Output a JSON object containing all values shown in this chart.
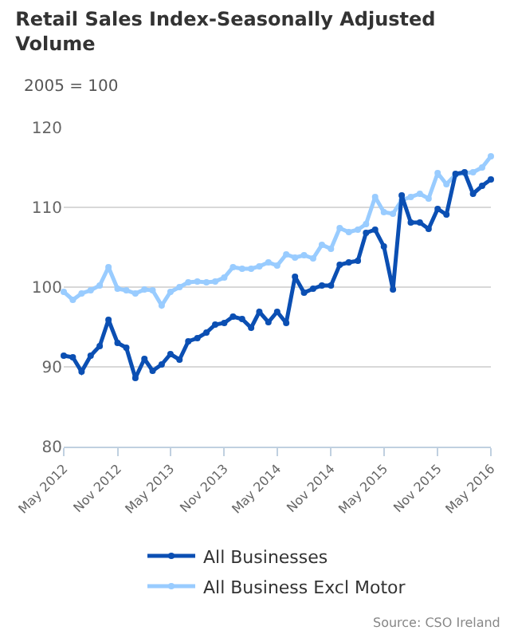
{
  "chart_data": {
    "type": "line",
    "title": "Retail Sales Index-Seasonally Adjusted Volume",
    "subtitle": "2005 = 100",
    "x": [
      "2012-05",
      "2012-06",
      "2012-07",
      "2012-08",
      "2012-09",
      "2012-10",
      "2012-11",
      "2012-12",
      "2013-01",
      "2013-02",
      "2013-03",
      "2013-04",
      "2013-05",
      "2013-06",
      "2013-07",
      "2013-08",
      "2013-09",
      "2013-10",
      "2013-11",
      "2013-12",
      "2014-01",
      "2014-02",
      "2014-03",
      "2014-04",
      "2014-05",
      "2014-06",
      "2014-07",
      "2014-08",
      "2014-09",
      "2014-10",
      "2014-11",
      "2014-12",
      "2015-01",
      "2015-02",
      "2015-03",
      "2015-04",
      "2015-05",
      "2015-06",
      "2015-07",
      "2015-08",
      "2015-09",
      "2015-10",
      "2015-11",
      "2015-12",
      "2016-01",
      "2016-02",
      "2016-03",
      "2016-04",
      "2016-05"
    ],
    "series": [
      {
        "name": "All Businesses",
        "color": "#0b4fb3",
        "values": [
          91.4,
          91.2,
          89.4,
          91.4,
          92.6,
          95.9,
          93.0,
          92.4,
          88.6,
          91.0,
          89.5,
          90.3,
          91.6,
          90.9,
          93.2,
          93.6,
          94.3,
          95.3,
          95.5,
          96.3,
          96.0,
          94.9,
          96.9,
          95.6,
          96.9,
          95.5,
          101.3,
          99.3,
          99.8,
          100.2,
          100.2,
          102.8,
          103.1,
          103.3,
          106.8,
          107.2,
          105.1,
          99.7,
          111.5,
          108.1,
          108.1,
          107.3,
          109.8,
          109.1,
          114.2,
          114.4,
          111.7,
          112.7,
          113.5
        ]
      },
      {
        "name": "All Business Excl Motor",
        "color": "#99ccff",
        "values": [
          99.4,
          98.4,
          99.2,
          99.6,
          100.2,
          102.5,
          99.8,
          99.6,
          99.2,
          99.7,
          99.6,
          97.7,
          99.4,
          100.0,
          100.6,
          100.7,
          100.6,
          100.7,
          101.2,
          102.5,
          102.3,
          102.3,
          102.6,
          103.1,
          102.7,
          104.1,
          103.7,
          104.0,
          103.6,
          105.3,
          104.8,
          107.4,
          106.9,
          107.2,
          107.9,
          111.3,
          109.4,
          109.2,
          110.9,
          111.3,
          111.7,
          111.1,
          114.3,
          112.9,
          114.1,
          114.3,
          114.4,
          115.0,
          116.4
        ]
      }
    ],
    "xlim": [
      "2012-05",
      "2016-05"
    ],
    "xticks": [
      {
        "value": "2012-05",
        "label": "May 2012"
      },
      {
        "value": "2012-11",
        "label": "Nov 2012"
      },
      {
        "value": "2013-05",
        "label": "May 2013"
      },
      {
        "value": "2013-11",
        "label": "Nov 2013"
      },
      {
        "value": "2014-05",
        "label": "May 2014"
      },
      {
        "value": "2014-11",
        "label": "Nov 2014"
      },
      {
        "value": "2015-05",
        "label": "May 2015"
      },
      {
        "value": "2015-11",
        "label": "Nov 2015"
      },
      {
        "value": "2016-05",
        "label": "May 2016"
      }
    ],
    "ylim": [
      80,
      120
    ],
    "yticks": [
      80,
      90,
      100,
      110,
      120
    ],
    "grid": "y",
    "legend": "bottom",
    "marker": "circle",
    "line_style": "solid",
    "annotations": [
      "Source: CSO Ireland"
    ]
  }
}
